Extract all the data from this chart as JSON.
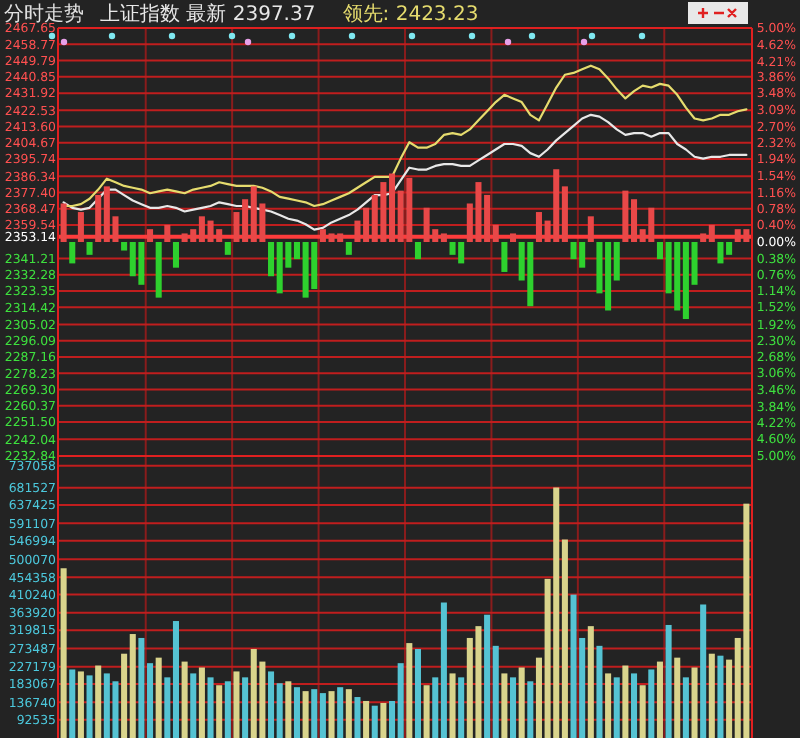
{
  "chart_data": [
    {
      "type": "line",
      "title": "分时走势",
      "grid": true,
      "tick_labels": "y",
      "categories": [
        null,
        null,
        null,
        null,
        null,
        null,
        null,
        null,
        null,
        null,
        null,
        null,
        null,
        null,
        null,
        null,
        null,
        null,
        null,
        null,
        null,
        null,
        null,
        null,
        null,
        null,
        null,
        null,
        null,
        null,
        null,
        null,
        null,
        null,
        null,
        null,
        null,
        null,
        null,
        null,
        null,
        null,
        null,
        null,
        null,
        null,
        null,
        null,
        null,
        null,
        null,
        null,
        null,
        null,
        null,
        null,
        null,
        null,
        null,
        null,
        null,
        null,
        null,
        null,
        null,
        null,
        null,
        null,
        null,
        null,
        null,
        null,
        null,
        null,
        null,
        null,
        null,
        null,
        null,
        null
      ],
      "ylim": [
        2232.84,
        2467.65
      ],
      "yticks": [
        2467.65,
        2458.77,
        2449.79,
        2440.85,
        2431.92,
        2422.53,
        {
          "value": 2413.6,
          "label": "2413.60"
        },
        2404.67,
        2395.74,
        2386.34,
        {
          "value": 2377.4,
          "label": "2377.40"
        },
        2368.47,
        2359.54,
        2353.14,
        2341.21,
        2332.28,
        2323.35,
        2314.42,
        2305.02,
        2296.09,
        2287.16,
        2278.23,
        {
          "value": 2269.3,
          "label": "2269.30"
        },
        2260.37,
        {
          "value": 2251.5,
          "label": "2251.50"
        },
        2242.04,
        2232.84
      ],
      "ref_lines": [
        {
          "axis": "y",
          "value": 2353.14,
          "color": "#ff3c3c"
        }
      ],
      "series": [
        {
          "name": "上证指数 最新 2397.37",
          "color": "#e8e8e8",
          "values": [
            2372,
            2369,
            2368,
            2369,
            2374,
            2379,
            2379,
            2376,
            2373,
            2371,
            2369,
            2369,
            2370,
            2369,
            2367,
            2368,
            2369,
            2370,
            2372,
            2371,
            2370,
            2370,
            2369,
            2368,
            2367,
            2365,
            2363,
            2362,
            2360,
            2357,
            2358,
            2361,
            2363,
            2365,
            2368,
            2372,
            2376,
            2376,
            2377,
            2384,
            2391,
            2390,
            2390,
            2392,
            2393,
            2393,
            2392,
            2392,
            2395,
            2398,
            2401,
            2404,
            2404,
            2403,
            2399,
            2397,
            2401,
            2406,
            2410,
            2414,
            2418,
            2420,
            2419,
            2416,
            2412,
            2409,
            2410,
            2410,
            2408,
            2410,
            2410,
            2404,
            2401,
            2397,
            2396,
            2397,
            2397,
            2398,
            2398,
            2398
          ]
        },
        {
          "name": "领先: 2423.23",
          "color": "#e6dc6e",
          "values": [
            2370,
            2370,
            2371,
            2374,
            2379,
            2385,
            2383,
            2381,
            2380,
            2379,
            2377,
            2378,
            2379,
            2378,
            2377,
            2379,
            2380,
            2381,
            2383,
            2382,
            2381,
            2381,
            2381,
            2380,
            2378,
            2375,
            2374,
            2373,
            2372,
            2370,
            2371,
            2373,
            2375,
            2377,
            2380,
            2383,
            2386,
            2386,
            2386,
            2396,
            2405,
            2402,
            2402,
            2404,
            2409,
            2410,
            2409,
            2412,
            2417,
            2422,
            2427,
            2431,
            2429,
            2427,
            2420,
            2417,
            2426,
            2435,
            2442,
            2443,
            2445,
            2447,
            2445,
            2440,
            2434,
            2429,
            2433,
            2436,
            2435,
            2437,
            2436,
            2431,
            2424,
            2418,
            2417,
            2418,
            2420,
            2420,
            2422,
            2423
          ]
        }
      ]
    },
    {
      "type": "bar",
      "tick_labels": "y",
      "categories": [
        null,
        null,
        null,
        null,
        null,
        null,
        null,
        null,
        null,
        null,
        null,
        null,
        null,
        null,
        null,
        null,
        null,
        null,
        null,
        null,
        null,
        null,
        null,
        null,
        null,
        null,
        null,
        null,
        null,
        null,
        null,
        null,
        null,
        null,
        null,
        null,
        null,
        null,
        null,
        null,
        null,
        null,
        null,
        null,
        null,
        null,
        null,
        null,
        null,
        null,
        null,
        null,
        null,
        null,
        null,
        null,
        null,
        null,
        null,
        null,
        null,
        null,
        null,
        null,
        null,
        null,
        null,
        null,
        null,
        null,
        null,
        null,
        null,
        null,
        null,
        null,
        null,
        null,
        null,
        null
      ],
      "y2lim": [
        -5,
        5
      ],
      "y2ticks": [
        {
          "value": 5,
          "label": "5.00%"
        },
        {
          "value": 4.62,
          "label": "4.62%"
        },
        {
          "value": 4.21,
          "label": "4.21%"
        },
        {
          "value": 3.86,
          "label": "3.86%"
        },
        {
          "value": 3.48,
          "label": "3.48%"
        },
        {
          "value": 3.09,
          "label": "3.09%"
        },
        {
          "value": 2.7,
          "label": "2.70%"
        },
        {
          "value": 2.32,
          "label": "2.32%"
        },
        {
          "value": 1.94,
          "label": "1.94%"
        },
        {
          "value": 1.54,
          "label": "1.54%"
        },
        {
          "value": 1.16,
          "label": "1.16%"
        },
        {
          "value": 0.78,
          "label": "0.78%"
        },
        {
          "value": 0.4,
          "label": "0.40%"
        },
        {
          "value": 0,
          "label": "0.00%"
        },
        {
          "value": -0.38,
          "label": "0.38%"
        },
        {
          "value": -0.76,
          "label": "0.76%"
        },
        {
          "value": -1.14,
          "label": "1.14%"
        },
        {
          "value": -1.52,
          "label": "1.52%"
        },
        {
          "value": -1.92,
          "label": "1.92%"
        },
        {
          "value": -2.3,
          "label": "2.30%"
        },
        {
          "value": -2.68,
          "label": "2.68%"
        },
        {
          "value": -3.06,
          "label": "3.06%"
        },
        {
          "value": -3.46,
          "label": "3.46%"
        },
        {
          "value": -3.84,
          "label": "3.84%"
        },
        {
          "value": -4.22,
          "label": "4.22%"
        },
        {
          "value": -4.6,
          "label": "4.60%"
        },
        {
          "value": -5,
          "label": "5.00%"
        }
      ],
      "series": [
        {
          "axis": "y2",
          "values": [
            0.9,
            -0.5,
            0.7,
            -0.3,
            1.1,
            1.3,
            0.6,
            -0.2,
            -0.8,
            -1.0,
            0.3,
            -1.3,
            0.4,
            -0.6,
            0.2,
            0.3,
            0.6,
            0.5,
            0.3,
            -0.3,
            0.7,
            1.0,
            1.3,
            0.9,
            -0.8,
            -1.2,
            -0.6,
            -0.4,
            -1.3,
            -1.1,
            0.3,
            0.2,
            0.2,
            -0.3,
            0.5,
            0.8,
            1.1,
            1.4,
            1.6,
            1.2,
            1.5,
            -0.4,
            0.8,
            0.3,
            0.2,
            -0.3,
            -0.5,
            0.9,
            1.4,
            1.1,
            0.4,
            -0.7,
            0.2,
            -0.9,
            -1.5,
            0.7,
            0.5,
            1.7,
            1.3,
            -0.4,
            -0.6,
            0.6,
            -1.2,
            -1.6,
            -0.9,
            1.2,
            1.0,
            0.3,
            0.8,
            -0.4,
            -1.2,
            -1.6,
            -1.8,
            -1.0,
            0.2,
            0.4,
            -0.5,
            -0.3,
            0.3,
            0.3
          ],
          "colors": [
            "#e84848",
            "#2ed12e",
            "#e84848",
            "#2ed12e",
            "#e84848",
            "#e84848",
            "#e84848",
            "#2ed12e",
            "#2ed12e",
            "#2ed12e",
            "#e84848",
            "#2ed12e",
            "#e84848",
            "#2ed12e",
            "#e84848",
            "#e84848",
            "#e84848",
            "#e84848",
            "#e84848",
            "#2ed12e",
            "#e84848",
            "#e84848",
            "#e84848",
            "#e84848",
            "#2ed12e",
            "#2ed12e",
            "#2ed12e",
            "#2ed12e",
            "#2ed12e",
            "#2ed12e",
            "#e84848",
            "#e84848",
            "#e84848",
            "#2ed12e",
            "#e84848",
            "#e84848",
            "#e84848",
            "#e84848",
            "#e84848",
            "#e84848",
            "#e84848",
            "#2ed12e",
            "#e84848",
            "#e84848",
            "#e84848",
            "#2ed12e",
            "#2ed12e",
            "#e84848",
            "#e84848",
            "#e84848",
            "#e84848",
            "#2ed12e",
            "#e84848",
            "#2ed12e",
            "#2ed12e",
            "#e84848",
            "#e84848",
            "#e84848",
            "#e84848",
            "#2ed12e",
            "#2ed12e",
            "#e84848",
            "#2ed12e",
            "#2ed12e",
            "#2ed12e",
            "#e84848",
            "#e84848",
            "#e84848",
            "#e84848",
            "#2ed12e",
            "#2ed12e",
            "#2ed12e",
            "#2ed12e",
            "#2ed12e",
            "#e84848",
            "#e84848",
            "#2ed12e",
            "#2ed12e",
            "#e84848",
            "#e84848"
          ]
        }
      ]
    },
    {
      "type": "bar",
      "grid": true,
      "tick_labels": "y",
      "categories": [
        null,
        null,
        null,
        null,
        null,
        null,
        null,
        null,
        null,
        null,
        null,
        null,
        null,
        null,
        null,
        null,
        null,
        null,
        null,
        null,
        null,
        null,
        null,
        null,
        null,
        null,
        null,
        null,
        null,
        null,
        null,
        null,
        null,
        null,
        null,
        null,
        null,
        null,
        null,
        null,
        null,
        null,
        null,
        null,
        null,
        null,
        null,
        null,
        null,
        null,
        null,
        null,
        null,
        null,
        null,
        null,
        null,
        null,
        null,
        null,
        null,
        null,
        null,
        null,
        null,
        null,
        null,
        null,
        null,
        null,
        null,
        null,
        null,
        null,
        null,
        null,
        null,
        null,
        null,
        null
      ],
      "ylim": [
        46000,
        762000
      ],
      "yticks": [
        737058,
        681527,
        637425,
        591107,
        546994,
        500070,
        454358,
        410240,
        363920,
        319815,
        273487,
        227179,
        183067,
        136740,
        92535
      ],
      "values": [
        477000,
        220000,
        215000,
        205000,
        230000,
        210000,
        190000,
        260000,
        310000,
        300000,
        236000,
        250000,
        200000,
        343000,
        240000,
        210000,
        225000,
        200000,
        180000,
        190000,
        215000,
        200000,
        272000,
        240000,
        215000,
        185000,
        190000,
        175000,
        165000,
        170000,
        160000,
        165000,
        175000,
        170000,
        150000,
        140000,
        128000,
        135000,
        140000,
        236000,
        287000,
        272000,
        180000,
        200000,
        390000,
        210000,
        200000,
        300000,
        330000,
        359000,
        280000,
        210000,
        200000,
        225000,
        190000,
        250000,
        450000,
        682000,
        550000,
        410000,
        300000,
        330000,
        280000,
        210000,
        200000,
        230000,
        210000,
        180000,
        220000,
        240000,
        333000,
        250000,
        200000,
        225000,
        385000,
        260000,
        255000,
        245000,
        300000,
        641000
      ],
      "colors": [
        "#d9d48c",
        "#55c3d3",
        "#d9d48c",
        "#55c3d3",
        "#d9d48c",
        "#55c3d3",
        "#55c3d3",
        "#d9d48c",
        "#d9d48c",
        "#55c3d3",
        "#55c3d3",
        "#d9d48c",
        "#55c3d3",
        "#55c3d3",
        "#d9d48c",
        "#55c3d3",
        "#d9d48c",
        "#55c3d3",
        "#d9d48c",
        "#55c3d3",
        "#d9d48c",
        "#55c3d3",
        "#d9d48c",
        "#d9d48c",
        "#55c3d3",
        "#55c3d3",
        "#d9d48c",
        "#55c3d3",
        "#d9d48c",
        "#55c3d3",
        "#55c3d3",
        "#d9d48c",
        "#55c3d3",
        "#d9d48c",
        "#55c3d3",
        "#d9d48c",
        "#55c3d3",
        "#d9d48c",
        "#55c3d3",
        "#55c3d3",
        "#d9d48c",
        "#55c3d3",
        "#d9d48c",
        "#55c3d3",
        "#55c3d3",
        "#d9d48c",
        "#55c3d3",
        "#d9d48c",
        "#d9d48c",
        "#55c3d3",
        "#55c3d3",
        "#d9d48c",
        "#55c3d3",
        "#d9d48c",
        "#55c3d3",
        "#d9d48c",
        "#d9d48c",
        "#d9d48c",
        "#d9d48c",
        "#55c3d3",
        "#55c3d3",
        "#d9d48c",
        "#55c3d3",
        "#d9d48c",
        "#55c3d3",
        "#d9d48c",
        "#55c3d3",
        "#d9d48c",
        "#55c3d3",
        "#d9d48c",
        "#55c3d3",
        "#d9d48c",
        "#55c3d3",
        "#d9d48c",
        "#55c3d3",
        "#d9d48c",
        "#55c3d3",
        "#d9d48c",
        "#d9d48c",
        "#d9d48c"
      ]
    }
  ]
}
